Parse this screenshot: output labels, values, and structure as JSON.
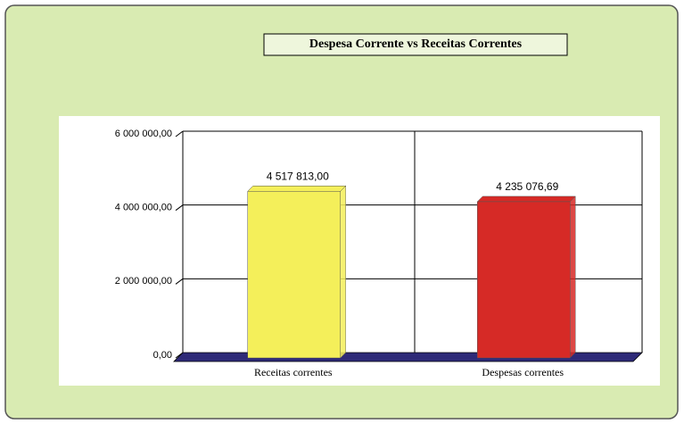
{
  "chart_data": {
    "type": "bar",
    "title": "Despesa Corrente vs Receitas Correntes",
    "categories": [
      "Receitas correntes",
      "Despesas correntes"
    ],
    "values": [
      4517813.0,
      4235076.69
    ],
    "value_labels": [
      "4 517 813,00",
      "4 235 076,69"
    ],
    "colors": [
      "#f4ef5a",
      "#d62a26"
    ],
    "ylim": [
      0,
      6000000
    ],
    "yticks": [
      {
        "value": 0,
        "label": "0,00"
      },
      {
        "value": 2000000,
        "label": "2 000 000,00"
      },
      {
        "value": 4000000,
        "label": "4 000 000,00"
      },
      {
        "value": 6000000,
        "label": "6 000 000,00"
      }
    ],
    "grid": true
  }
}
